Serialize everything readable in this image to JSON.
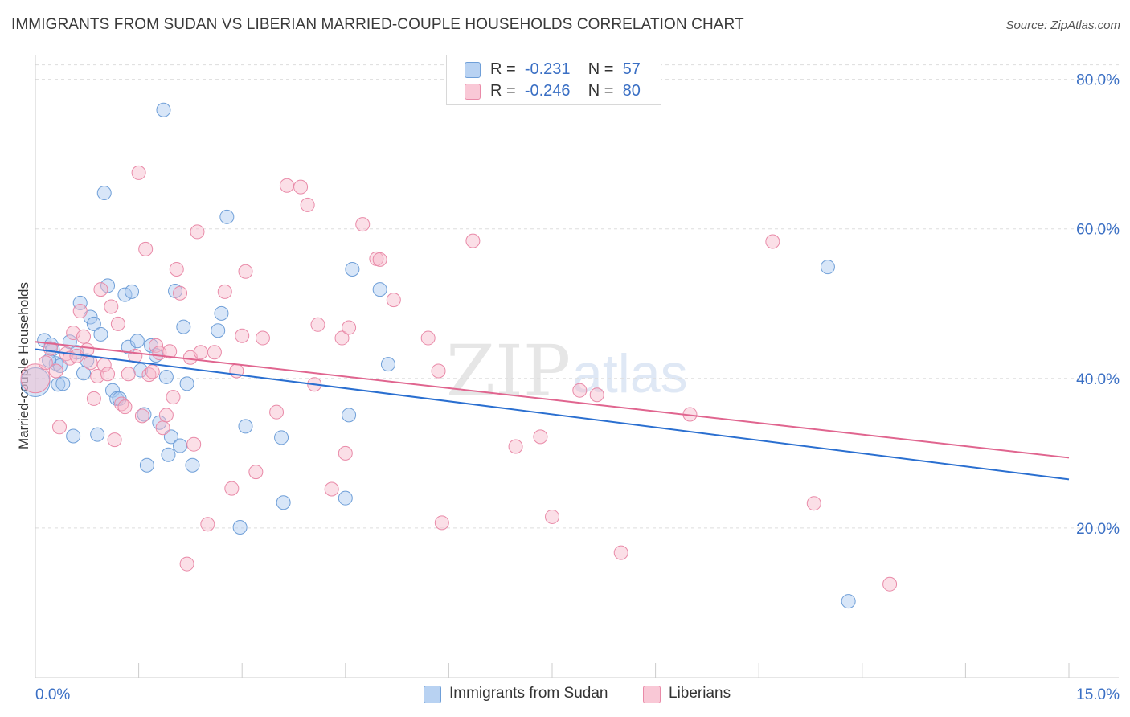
{
  "header": {
    "title": "IMMIGRANTS FROM SUDAN VS LIBERIAN MARRIED-COUPLE HOUSEHOLDS CORRELATION CHART",
    "source": "Source: ZipAtlas.com"
  },
  "watermark": {
    "part1": "ZIP",
    "part2": "atlas"
  },
  "legend": {
    "rows": [
      {
        "r_label": "R =",
        "r_value": "-0.231",
        "n_label": "N =",
        "n_value": "57"
      },
      {
        "r_label": "R =",
        "r_value": "-0.246",
        "n_label": "N =",
        "n_value": "80"
      }
    ],
    "bottom": [
      "Immigrants from Sudan",
      "Liberians"
    ]
  },
  "colors": {
    "sudan_fill": "#a9c8ef",
    "sudan_stroke": "#6f9fd8",
    "sudan_line": "#2a6fd0",
    "liberian_fill": "#f6b8ca",
    "liberian_stroke": "#e98aa8",
    "liberian_line": "#e0658f",
    "axis_label": "#3a6fc4",
    "grid": "#dddddd"
  },
  "chart_data": {
    "type": "scatter",
    "title": "IMMIGRANTS FROM SUDAN VS LIBERIAN MARRIED-COUPLE HOUSEHOLDS CORRELATION CHART",
    "xlabel": "",
    "ylabel": "Married-couple Households",
    "xlim": [
      0,
      15
    ],
    "ylim": [
      0,
      82
    ],
    "x_tick_labels": [
      "0.0%",
      "15.0%"
    ],
    "y_ticks": [
      20,
      40,
      60,
      80
    ],
    "y_tick_labels": [
      "20.0%",
      "40.0%",
      "60.0%",
      "80.0%"
    ],
    "grid": true,
    "legend_position": "top-center",
    "series": [
      {
        "name": "Immigrants from Sudan",
        "R": -0.231,
        "N": 57,
        "trend": {
          "x": [
            0,
            15
          ],
          "y": [
            43.9,
            26.5
          ]
        },
        "points": [
          [
            0.0,
            39.5
          ],
          [
            0.13,
            45.1
          ],
          [
            0.23,
            44.5
          ],
          [
            0.25,
            43.9
          ],
          [
            0.3,
            42.0
          ],
          [
            0.33,
            39.2
          ],
          [
            0.36,
            41.7
          ],
          [
            0.4,
            39.3
          ],
          [
            0.5,
            44.9
          ],
          [
            0.55,
            32.3
          ],
          [
            0.6,
            43.5
          ],
          [
            0.65,
            50.1
          ],
          [
            0.7,
            40.7
          ],
          [
            0.75,
            42.4
          ],
          [
            0.8,
            48.2
          ],
          [
            0.85,
            47.3
          ],
          [
            0.9,
            32.5
          ],
          [
            0.95,
            45.9
          ],
          [
            1.0,
            64.8
          ],
          [
            1.05,
            52.4
          ],
          [
            1.12,
            38.4
          ],
          [
            1.18,
            37.3
          ],
          [
            1.22,
            37.3
          ],
          [
            1.3,
            51.2
          ],
          [
            1.35,
            44.2
          ],
          [
            1.4,
            51.6
          ],
          [
            1.48,
            45.0
          ],
          [
            1.53,
            41.1
          ],
          [
            1.58,
            35.2
          ],
          [
            1.62,
            28.4
          ],
          [
            1.68,
            44.4
          ],
          [
            1.75,
            43.1
          ],
          [
            1.8,
            34.1
          ],
          [
            1.86,
            75.9
          ],
          [
            1.9,
            40.2
          ],
          [
            1.93,
            29.8
          ],
          [
            1.97,
            32.2
          ],
          [
            2.03,
            51.7
          ],
          [
            2.1,
            31.0
          ],
          [
            2.15,
            46.9
          ],
          [
            2.2,
            39.3
          ],
          [
            2.28,
            28.4
          ],
          [
            2.65,
            46.4
          ],
          [
            2.7,
            48.7
          ],
          [
            2.78,
            61.6
          ],
          [
            2.97,
            20.1
          ],
          [
            3.05,
            33.6
          ],
          [
            3.57,
            32.1
          ],
          [
            3.6,
            23.4
          ],
          [
            4.5,
            24.0
          ],
          [
            4.55,
            35.1
          ],
          [
            4.6,
            54.6
          ],
          [
            5.0,
            51.9
          ],
          [
            5.12,
            41.9
          ],
          [
            11.5,
            54.9
          ],
          [
            11.8,
            10.2
          ],
          [
            0.2,
            42.4
          ]
        ]
      },
      {
        "name": "Liberians",
        "R": -0.246,
        "N": 80,
        "trend": {
          "x": [
            0,
            15
          ],
          "y": [
            44.9,
            29.4
          ]
        },
        "points": [
          [
            0.0,
            40.0
          ],
          [
            0.15,
            42.1
          ],
          [
            0.22,
            44.0
          ],
          [
            0.3,
            41.0
          ],
          [
            0.35,
            33.5
          ],
          [
            0.45,
            43.3
          ],
          [
            0.5,
            42.7
          ],
          [
            0.55,
            46.1
          ],
          [
            0.6,
            43.0
          ],
          [
            0.65,
            49.0
          ],
          [
            0.7,
            45.6
          ],
          [
            0.75,
            43.8
          ],
          [
            0.8,
            42.1
          ],
          [
            0.85,
            37.3
          ],
          [
            0.9,
            40.3
          ],
          [
            0.95,
            51.9
          ],
          [
            1.0,
            41.8
          ],
          [
            1.05,
            40.6
          ],
          [
            1.1,
            49.6
          ],
          [
            1.15,
            31.8
          ],
          [
            1.2,
            47.3
          ],
          [
            1.25,
            36.6
          ],
          [
            1.3,
            36.2
          ],
          [
            1.35,
            40.6
          ],
          [
            1.45,
            43.0
          ],
          [
            1.5,
            67.5
          ],
          [
            1.55,
            35.0
          ],
          [
            1.6,
            57.3
          ],
          [
            1.65,
            40.5
          ],
          [
            1.7,
            40.9
          ],
          [
            1.75,
            44.4
          ],
          [
            1.8,
            43.4
          ],
          [
            1.85,
            33.4
          ],
          [
            1.9,
            35.1
          ],
          [
            1.95,
            43.6
          ],
          [
            2.0,
            37.5
          ],
          [
            2.05,
            54.6
          ],
          [
            2.1,
            51.4
          ],
          [
            2.2,
            15.2
          ],
          [
            2.25,
            42.8
          ],
          [
            2.3,
            31.2
          ],
          [
            2.35,
            59.6
          ],
          [
            2.4,
            43.5
          ],
          [
            2.5,
            20.5
          ],
          [
            2.6,
            43.5
          ],
          [
            2.75,
            51.6
          ],
          [
            2.85,
            25.3
          ],
          [
            2.92,
            41.0
          ],
          [
            3.0,
            45.7
          ],
          [
            3.05,
            54.3
          ],
          [
            3.2,
            27.5
          ],
          [
            3.3,
            45.4
          ],
          [
            3.5,
            35.5
          ],
          [
            3.65,
            65.8
          ],
          [
            3.85,
            65.6
          ],
          [
            3.95,
            63.2
          ],
          [
            4.05,
            39.2
          ],
          [
            4.1,
            47.2
          ],
          [
            4.3,
            25.2
          ],
          [
            4.45,
            45.4
          ],
          [
            4.55,
            46.8
          ],
          [
            4.75,
            60.6
          ],
          [
            4.95,
            56.0
          ],
          [
            5.0,
            55.9
          ],
          [
            5.2,
            50.5
          ],
          [
            5.7,
            45.4
          ],
          [
            5.85,
            41.0
          ],
          [
            5.9,
            20.7
          ],
          [
            6.35,
            58.4
          ],
          [
            6.97,
            30.9
          ],
          [
            7.33,
            32.2
          ],
          [
            7.5,
            21.5
          ],
          [
            7.9,
            38.4
          ],
          [
            8.15,
            37.8
          ],
          [
            8.5,
            16.7
          ],
          [
            9.5,
            35.2
          ],
          [
            10.7,
            58.3
          ],
          [
            11.3,
            23.3
          ],
          [
            12.4,
            12.5
          ],
          [
            4.5,
            30.0
          ]
        ]
      }
    ]
  }
}
